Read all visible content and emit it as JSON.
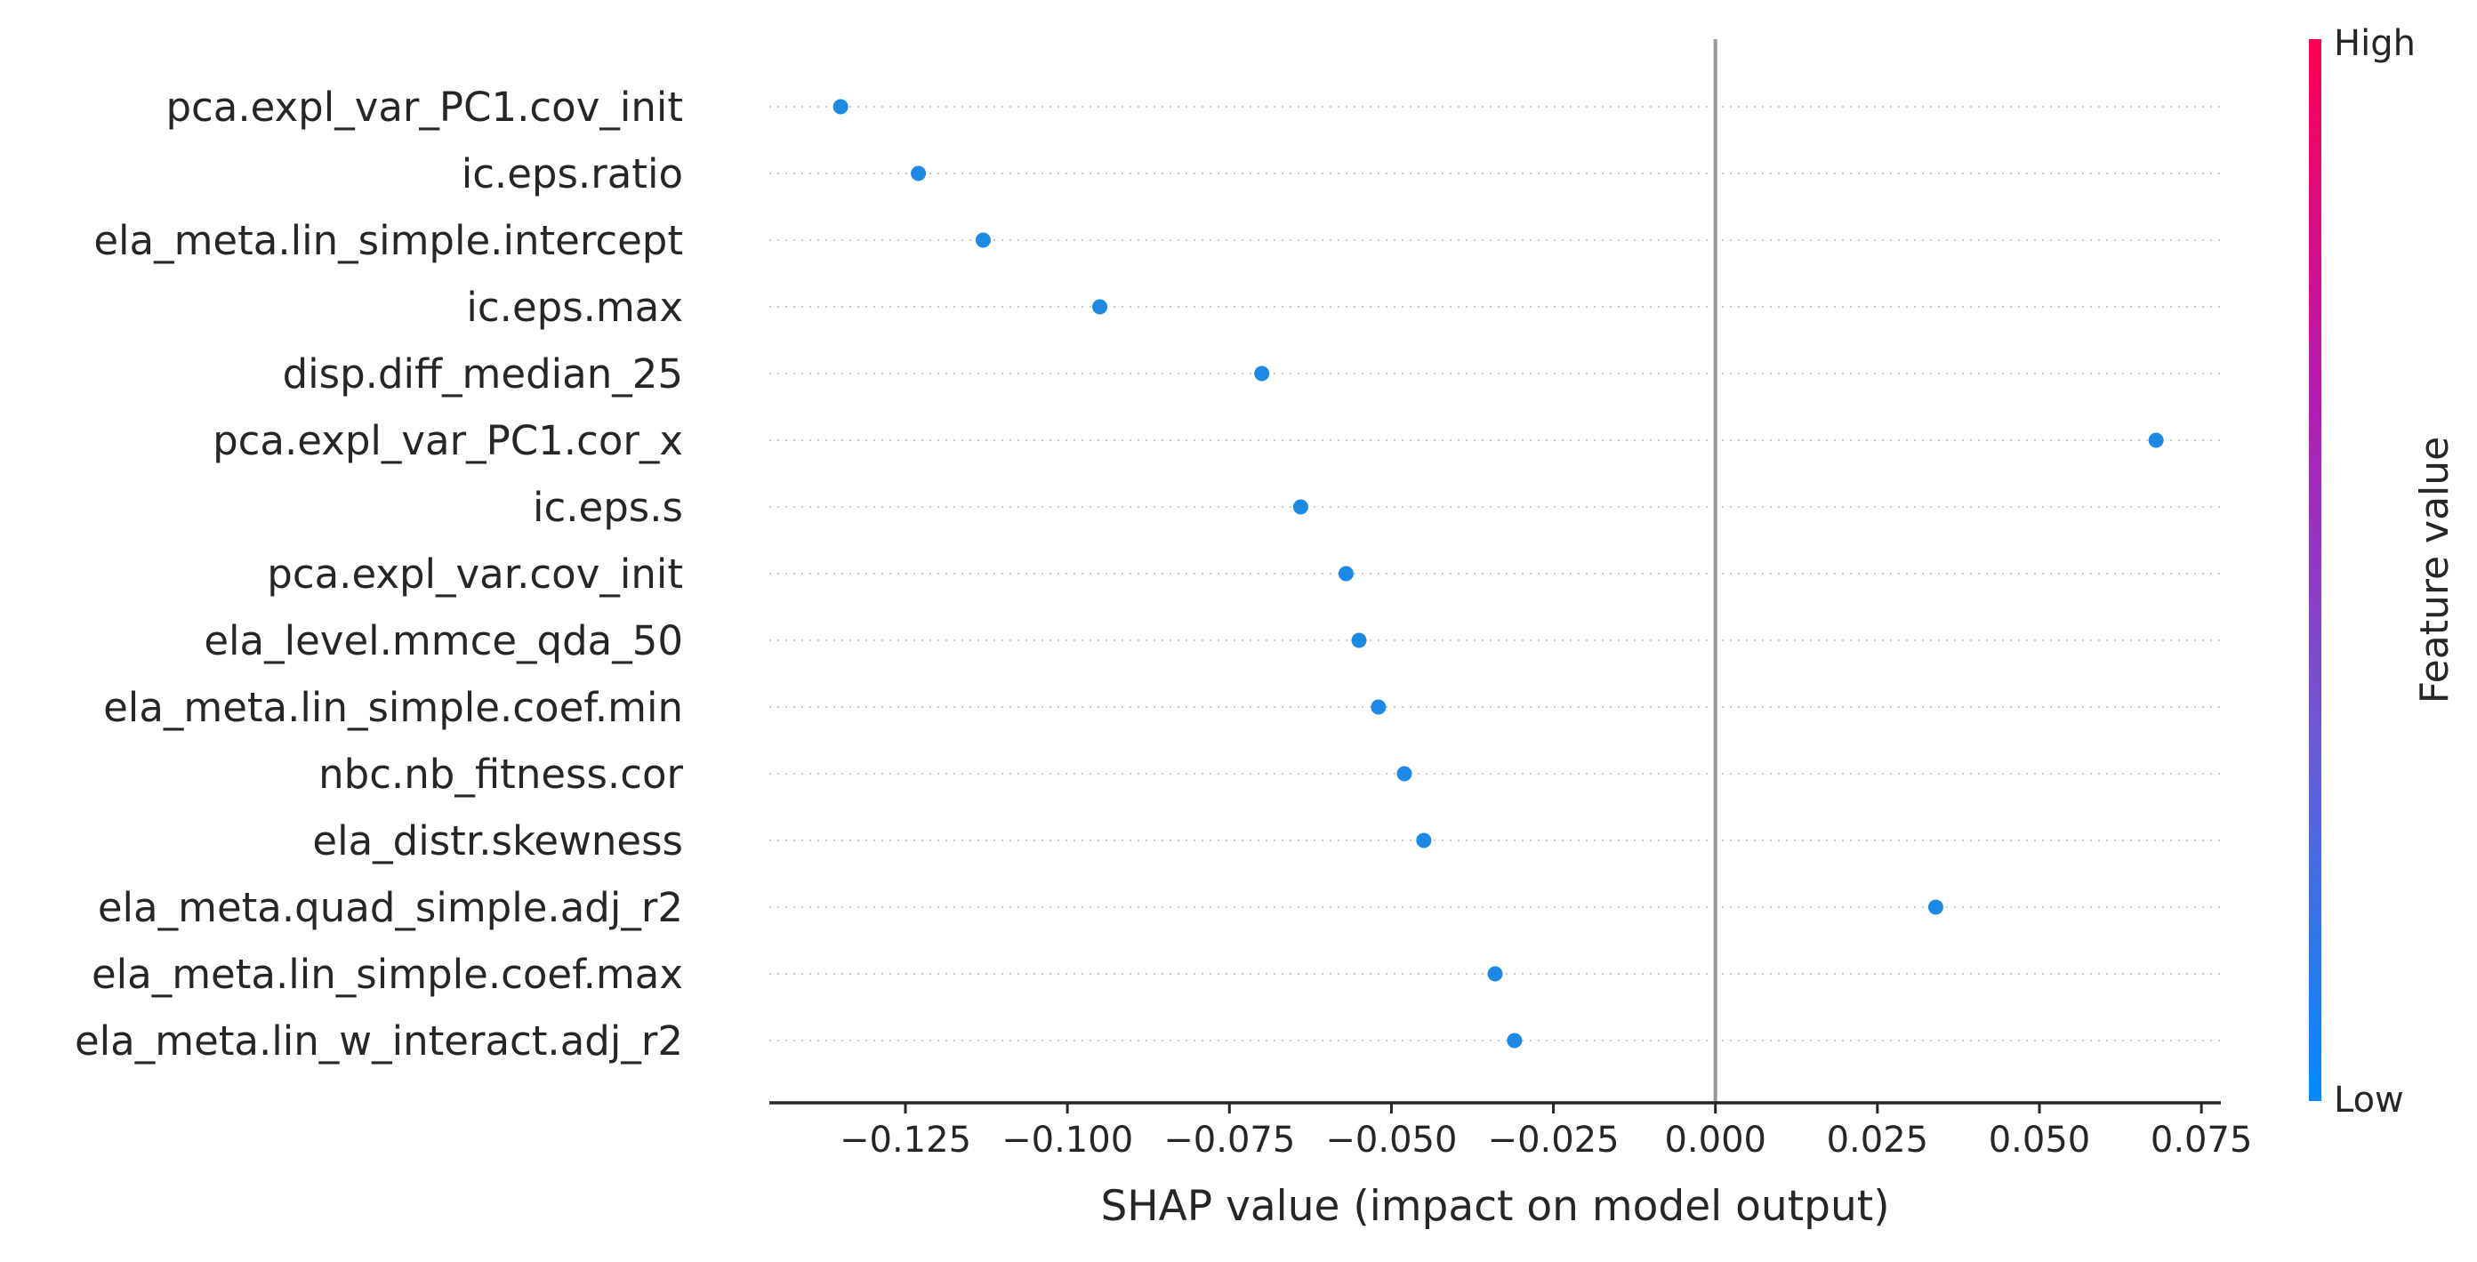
{
  "chart_data": {
    "type": "scatter",
    "subtype": "shap-summary-beeswarm",
    "xlabel": "SHAP value (impact on model output)",
    "xlim": [
      -0.146,
      0.078
    ],
    "xticks": [
      -0.125,
      -0.1,
      -0.075,
      -0.05,
      -0.025,
      0.0,
      0.025,
      0.05,
      0.075
    ],
    "xtick_labels": [
      "−0.125",
      "−0.100",
      "−0.075",
      "−0.050",
      "−0.025",
      "0.000",
      "0.025",
      "0.050",
      "0.075"
    ],
    "zero_line": 0.0,
    "point_color": "#1e88e5",
    "features": [
      "pca.expl_var_PC1.cov_init",
      "ic.eps.ratio",
      "ela_meta.lin_simple.intercept",
      "ic.eps.max",
      "disp.diff_median_25",
      "pca.expl_var_PC1.cor_x",
      "ic.eps.s",
      "pca.expl_var.cov_init",
      "ela_level.mmce_qda_50",
      "ela_meta.lin_simple.coef.min",
      "nbc.nb_fitness.cor",
      "ela_distr.skewness",
      "ela_meta.quad_simple.adj_r2",
      "ela_meta.lin_simple.coef.max",
      "ela_meta.lin_w_interact.adj_r2"
    ],
    "shap_values": [
      -0.135,
      -0.123,
      -0.113,
      -0.095,
      -0.07,
      0.068,
      -0.064,
      -0.057,
      -0.055,
      -0.052,
      -0.048,
      -0.045,
      0.034,
      -0.034,
      -0.031
    ],
    "colorbar": {
      "title": "Feature value",
      "high_label": "High",
      "low_label": "Low",
      "gradient": [
        "#008bfb",
        "#6a5bd6",
        "#b51ab0",
        "#ff0052"
      ]
    }
  }
}
